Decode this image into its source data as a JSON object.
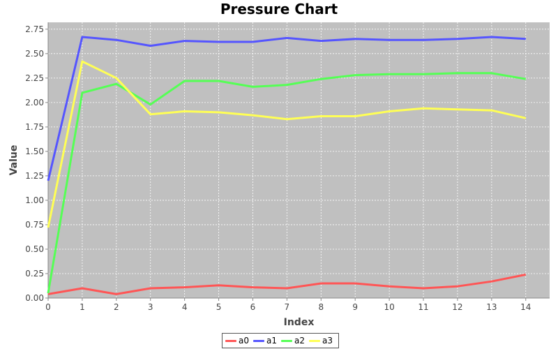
{
  "chart_data": {
    "type": "line",
    "title": "Pressure Chart",
    "xlabel": "Index",
    "ylabel": "Value",
    "x": [
      0,
      1,
      2,
      3,
      4,
      5,
      6,
      7,
      8,
      9,
      10,
      11,
      12,
      13,
      14
    ],
    "xlim": [
      0,
      14.7
    ],
    "ylim": [
      0,
      2.82
    ],
    "yticks": [
      0.0,
      0.25,
      0.5,
      0.75,
      1.0,
      1.25,
      1.5,
      1.75,
      2.0,
      2.25,
      2.5,
      2.75
    ],
    "ytick_labels": [
      "0.00",
      "0.25",
      "0.50",
      "0.75",
      "1.00",
      "1.25",
      "1.50",
      "1.75",
      "2.00",
      "2.25",
      "2.50",
      "2.75"
    ],
    "xticks": [
      0,
      1,
      2,
      3,
      4,
      5,
      6,
      7,
      8,
      9,
      10,
      11,
      12,
      13,
      14
    ],
    "xtick_labels": [
      "0",
      "1",
      "2",
      "3",
      "4",
      "5",
      "6",
      "7",
      "8",
      "9",
      "10",
      "11",
      "12",
      "13",
      "14"
    ],
    "grid": true,
    "legend_position": "bottom",
    "plot_background": "#c0c0c0",
    "series": [
      {
        "name": "a0",
        "color": "#ff5555",
        "values": [
          0.04,
          0.1,
          0.04,
          0.1,
          0.11,
          0.13,
          0.11,
          0.1,
          0.15,
          0.15,
          0.12,
          0.1,
          0.12,
          0.17,
          0.24
        ]
      },
      {
        "name": "a1",
        "color": "#5555ff",
        "values": [
          1.2,
          2.67,
          2.64,
          2.58,
          2.63,
          2.62,
          2.62,
          2.66,
          2.63,
          2.65,
          2.64,
          2.64,
          2.65,
          2.67,
          2.65
        ]
      },
      {
        "name": "a2",
        "color": "#55ff55",
        "values": [
          0.05,
          2.1,
          2.19,
          1.98,
          2.22,
          2.22,
          2.16,
          2.18,
          2.24,
          2.28,
          2.29,
          2.29,
          2.3,
          2.3,
          2.24
        ]
      },
      {
        "name": "a3",
        "color": "#ffff55",
        "values": [
          0.72,
          2.42,
          2.25,
          1.88,
          1.91,
          1.9,
          1.87,
          1.83,
          1.86,
          1.86,
          1.91,
          1.94,
          1.93,
          1.92,
          1.84
        ]
      }
    ]
  }
}
